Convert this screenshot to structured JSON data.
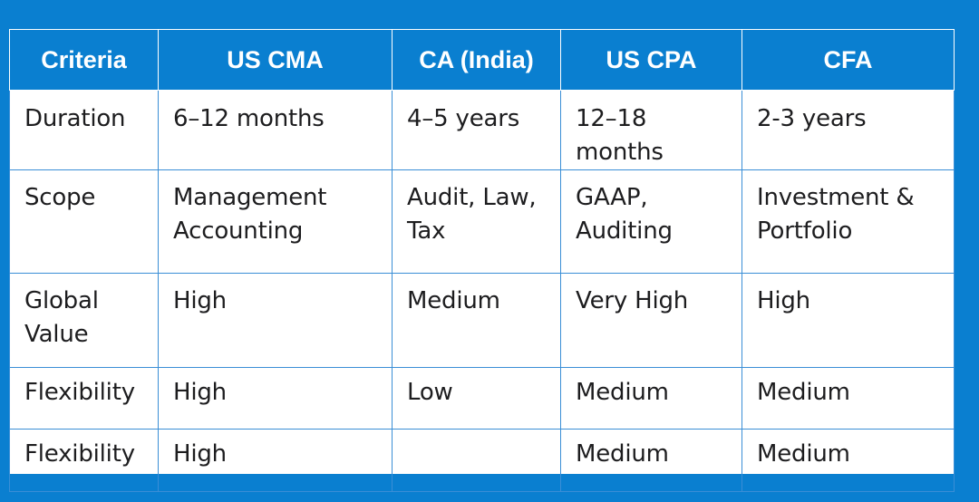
{
  "table": {
    "headers": [
      "Criteria",
      "US CMA",
      "CA (India)",
      "US CPA",
      "CFA"
    ],
    "rows": [
      [
        "Duration",
        "6–12 months",
        "4–5 years",
        "12–18 months",
        "2-3 years"
      ],
      [
        "Scope",
        "Management\nAccounting",
        "Audit, Law,\nTax",
        "GAAP,\nAuditing",
        "Investment &\nPortfolio"
      ],
      [
        "Global\nValue",
        "High",
        "Medium",
        "Very High",
        "High"
      ],
      [
        "Flexibility",
        "High",
        "Low",
        "Medium",
        "Medium"
      ],
      [
        "Flexibility",
        "High",
        "",
        "Medium",
        "Medium"
      ]
    ]
  },
  "colors": {
    "background": "#0a7fd0",
    "header_background": "#0a7fd0",
    "header_text": "#ffffff",
    "cell_background": "#ffffff",
    "grid_line": "#3a8ed6",
    "cell_text": "#1d1d1f"
  }
}
